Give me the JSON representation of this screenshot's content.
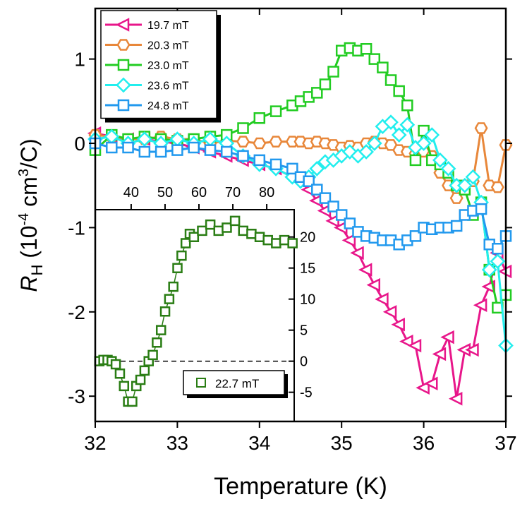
{
  "chart_data": [
    {
      "type": "line",
      "xlabel": "Temperature (K)",
      "ylabel": {
        "symbol": "R",
        "subscript": "H",
        "text": " (10",
        "exponent": "-4",
        "unit": " cm",
        "unit_exponent": "3",
        "end": "/C)"
      },
      "xlim": [
        32,
        37
      ],
      "xticks": [
        32,
        33,
        34,
        35,
        36,
        37
      ],
      "ylim": [
        -3.3,
        1.6
      ],
      "yticks": [
        -3,
        -2,
        -1,
        0,
        1
      ],
      "legend": "upper left",
      "x": [
        32.0,
        32.2,
        32.4,
        32.6,
        32.8,
        33.0,
        33.2,
        33.4,
        33.6,
        33.8,
        34.0,
        34.2,
        34.4,
        34.5,
        34.6,
        34.7,
        34.8,
        34.9,
        35.0,
        35.1,
        35.2,
        35.3,
        35.4,
        35.5,
        35.6,
        35.7,
        35.8,
        35.9,
        36.0,
        36.1,
        36.2,
        36.3,
        36.4,
        36.5,
        36.6,
        36.7,
        36.8,
        36.9,
        37.0
      ],
      "series": [
        {
          "name": "19.7 mT",
          "color": "#e8168a",
          "marker": "triangle-left",
          "values": [
            0.12,
            0.08,
            0.05,
            0.05,
            0.02,
            0,
            -0.05,
            -0.1,
            -0.15,
            -0.2,
            -0.25,
            -0.3,
            -0.4,
            -0.45,
            -0.55,
            -0.68,
            -0.8,
            -0.92,
            -1.0,
            -1.15,
            -1.3,
            -1.5,
            -1.68,
            -1.85,
            -2.0,
            -2.15,
            -2.35,
            -2.4,
            -2.9,
            -2.85,
            -2.5,
            -2.3,
            -3.03,
            -2.45,
            -2.45,
            -1.92,
            -1.7,
            -1.3,
            -1.52
          ]
        },
        {
          "name": "20.3 mT",
          "color": "#e8873a",
          "marker": "hexagon",
          "values": [
            0.1,
            0.08,
            0.05,
            0.05,
            0.08,
            0.05,
            0.05,
            0,
            0.03,
            0.02,
            0,
            0.02,
            0.02,
            0.02,
            0,
            0.02,
            0,
            -0.02,
            -0.05,
            -0.03,
            -0.05,
            0,
            0.02,
            0,
            -0.02,
            -0.08,
            -0.1,
            -0.12,
            -0.1,
            -0.15,
            -0.35,
            -0.5,
            -0.65,
            -0.5,
            -0.45,
            0.18,
            -0.5,
            -0.52,
            -0.02
          ]
        },
        {
          "name": "23.0 mT",
          "color": "#22cc22",
          "marker": "square",
          "values": [
            -0.08,
            0.1,
            0.05,
            0.08,
            0.05,
            0.03,
            0.05,
            0.08,
            0.1,
            0.18,
            0.3,
            0.38,
            0.45,
            0.5,
            0.55,
            0.6,
            0.7,
            0.85,
            1.1,
            1.13,
            1.1,
            1.12,
            1.0,
            0.9,
            0.75,
            0.62,
            0.45,
            -0.2,
            0.15,
            -0.2,
            -0.25,
            -0.35,
            -0.5,
            -0.55,
            -0.85,
            -0.7,
            -1.5,
            -1.95,
            -1.8
          ]
        },
        {
          "name": "23.6 mT",
          "color": "#22eeee",
          "marker": "diamond",
          "values": [
            0.05,
            0.08,
            0,
            0.05,
            0,
            0.05,
            0,
            0.05,
            0,
            -0.15,
            -0.25,
            -0.3,
            -0.4,
            -0.45,
            -0.4,
            -0.3,
            -0.22,
            -0.2,
            -0.15,
            -0.1,
            -0.15,
            -0.1,
            0,
            0.2,
            0.25,
            0.1,
            0.22,
            -0.05,
            0,
            0.1,
            -0.2,
            -0.3,
            -0.5,
            -0.5,
            -0.4,
            -0.7,
            -1.5,
            -1.4,
            -2.4
          ]
        },
        {
          "name": "24.8 mT",
          "color": "#2299ee",
          "marker": "square",
          "values": [
            0,
            -0.05,
            -0.05,
            -0.1,
            -0.1,
            -0.08,
            -0.05,
            -0.08,
            -0.1,
            -0.15,
            -0.2,
            -0.25,
            -0.3,
            -0.4,
            -0.45,
            -0.55,
            -0.65,
            -0.75,
            -0.85,
            -0.95,
            -1.05,
            -1.1,
            -1.12,
            -1.15,
            -1.15,
            -1.2,
            -1.15,
            -1.1,
            -1.0,
            -1.02,
            -1.0,
            -1.0,
            -0.98,
            -0.85,
            -0.8,
            -0.78,
            -1.2,
            -1.25,
            -1.1
          ]
        }
      ]
    },
    {
      "type": "line",
      "xlim": [
        32,
        34.42
      ],
      "x2lim": [
        29.4,
        88.1
      ],
      "x2ticks": [
        40,
        50,
        60,
        70,
        80
      ],
      "ylim": [
        -9.7,
        24.4
      ],
      "yticks": [
        -5,
        0,
        5,
        10,
        15,
        20
      ],
      "reference_line": 0,
      "legend": "lower right",
      "x": [
        32.05,
        32.1,
        32.15,
        32.2,
        32.25,
        32.3,
        32.35,
        32.4,
        32.45,
        32.5,
        32.55,
        32.6,
        32.65,
        32.7,
        32.75,
        32.8,
        32.85,
        32.9,
        32.95,
        33.0,
        33.05,
        33.1,
        33.15,
        33.2,
        33.3,
        33.4,
        33.5,
        33.6,
        33.7,
        33.8,
        33.9,
        34.0,
        34.1,
        34.2,
        34.3,
        34.4
      ],
      "series": [
        {
          "name": "22.7 mT",
          "color": "#2a7d14",
          "marker": "square",
          "values": [
            0,
            0.2,
            0.2,
            0,
            -0.5,
            -2,
            -4,
            -6.5,
            -6.5,
            -4,
            -3,
            -1.5,
            0,
            1,
            3,
            5,
            8,
            10,
            12,
            15,
            17,
            19,
            20.5,
            20,
            21,
            22,
            21,
            21.5,
            22.6,
            21,
            20.5,
            20,
            19.5,
            19,
            19.5,
            19
          ]
        }
      ]
    }
  ]
}
